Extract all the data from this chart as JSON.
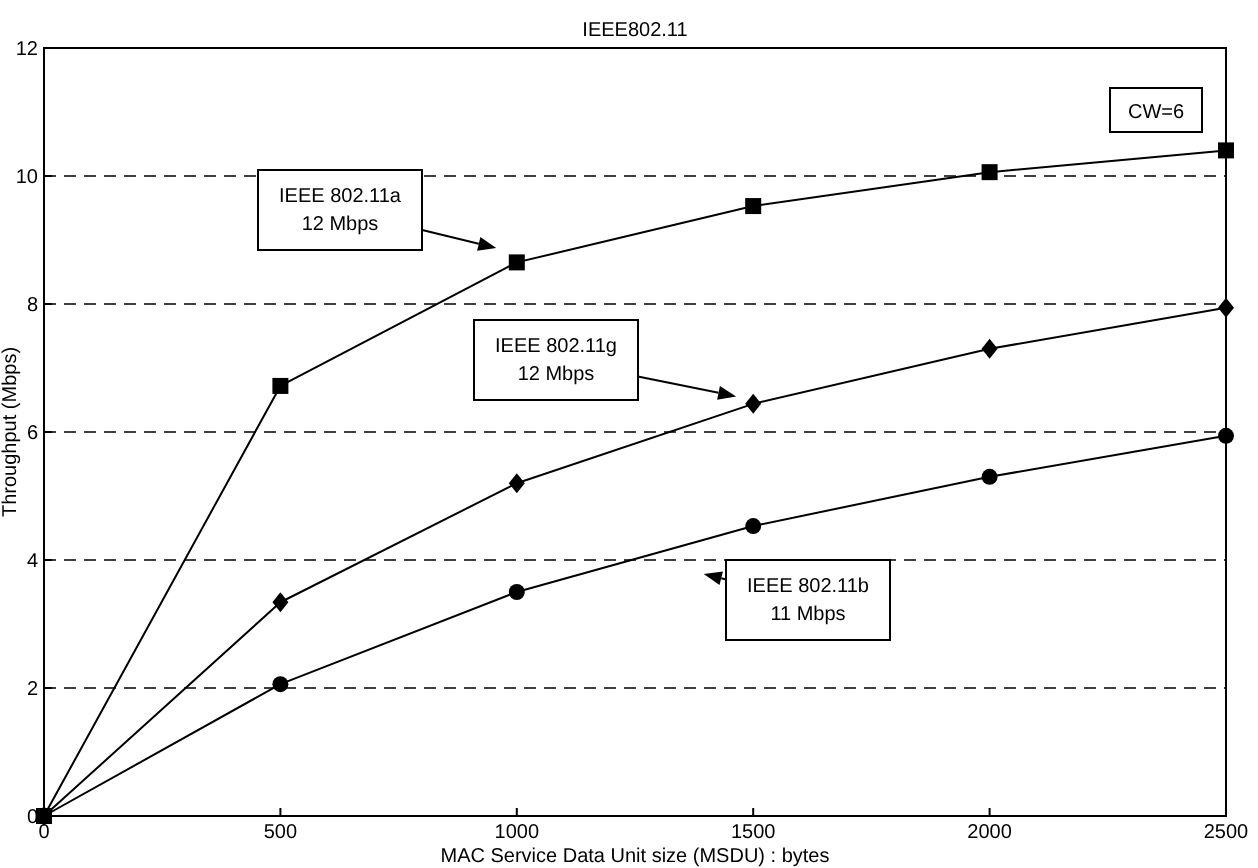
{
  "chart_data": {
    "type": "line",
    "title": "IEEE802.11",
    "xlabel": "MAC Service Data Unit size (MSDU) : bytes",
    "ylabel": "Throughput (Mbps)",
    "x": [
      0,
      500,
      1000,
      1500,
      2000,
      2500
    ],
    "series": [
      {
        "color": "#000000",
        "marker": "square",
        "values": [
          0,
          6.72,
          8.65,
          9.53,
          10.06,
          10.4
        ]
      },
      {
        "color": "#000000",
        "marker": "diamond",
        "values": [
          0,
          3.34,
          5.2,
          6.44,
          7.3,
          7.94
        ]
      },
      {
        "color": "#000000",
        "marker": "circle",
        "values": [
          0,
          2.06,
          3.5,
          4.53,
          5.3,
          5.94
        ]
      }
    ],
    "xlim": [
      0,
      2500
    ],
    "xticks": [
      0,
      500,
      1000,
      1500,
      2000,
      2500
    ],
    "ylim": [
      0,
      12
    ],
    "yticks": [
      0,
      2,
      4,
      6,
      8,
      10,
      12
    ],
    "grid": "y",
    "line_style": "solid",
    "annotations": [
      "IEEE 802.11a\n12 Mbps",
      "IEEE 802.11g\n12 Mbps",
      "IEEE 802.11b\n11 Mbps",
      "CW=6"
    ]
  }
}
